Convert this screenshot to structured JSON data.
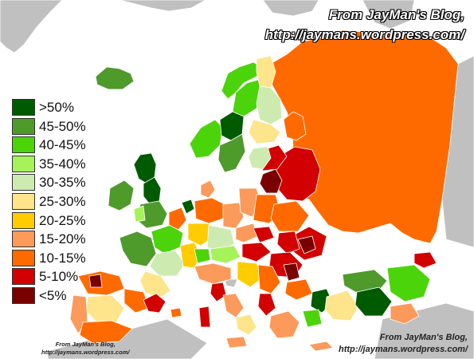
{
  "credits": {
    "top_line1": "From JayMan's Blog,",
    "top_line2": "http://jaymans.wordpress.com/",
    "bottom_right_line1": "From JayMan's Blog,",
    "bottom_right_line2": "http://jaymans.wordpress.com/",
    "bottom_left_line1": "From JayMan's Blog,",
    "bottom_left_line2": "http://jaymans.wordpress.com/"
  },
  "legend": [
    {
      "label": ">50%",
      "color": "#005a00"
    },
    {
      "label": "45-50%",
      "color": "#4e9a2a"
    },
    {
      "label": "40-45%",
      "color": "#4cd40a"
    },
    {
      "label": "35-40%",
      "color": "#a6f25a"
    },
    {
      "label": "30-35%",
      "color": "#cdebb0"
    },
    {
      "label": "25-30%",
      "color": "#fee48a"
    },
    {
      "label": "20-25%",
      "color": "#ffcc00"
    },
    {
      "label": "15-20%",
      "color": "#fb9a5a"
    },
    {
      "label": "10-15%",
      "color": "#ff6a00"
    },
    {
      "label": "5-10%",
      "color": "#d20000"
    },
    {
      "label": "<5%",
      "color": "#7a0000"
    }
  ],
  "colors": {
    "sea": "#ffffff",
    "non_data_land": "#c0c0c0",
    "border": "#ffffff"
  }
}
